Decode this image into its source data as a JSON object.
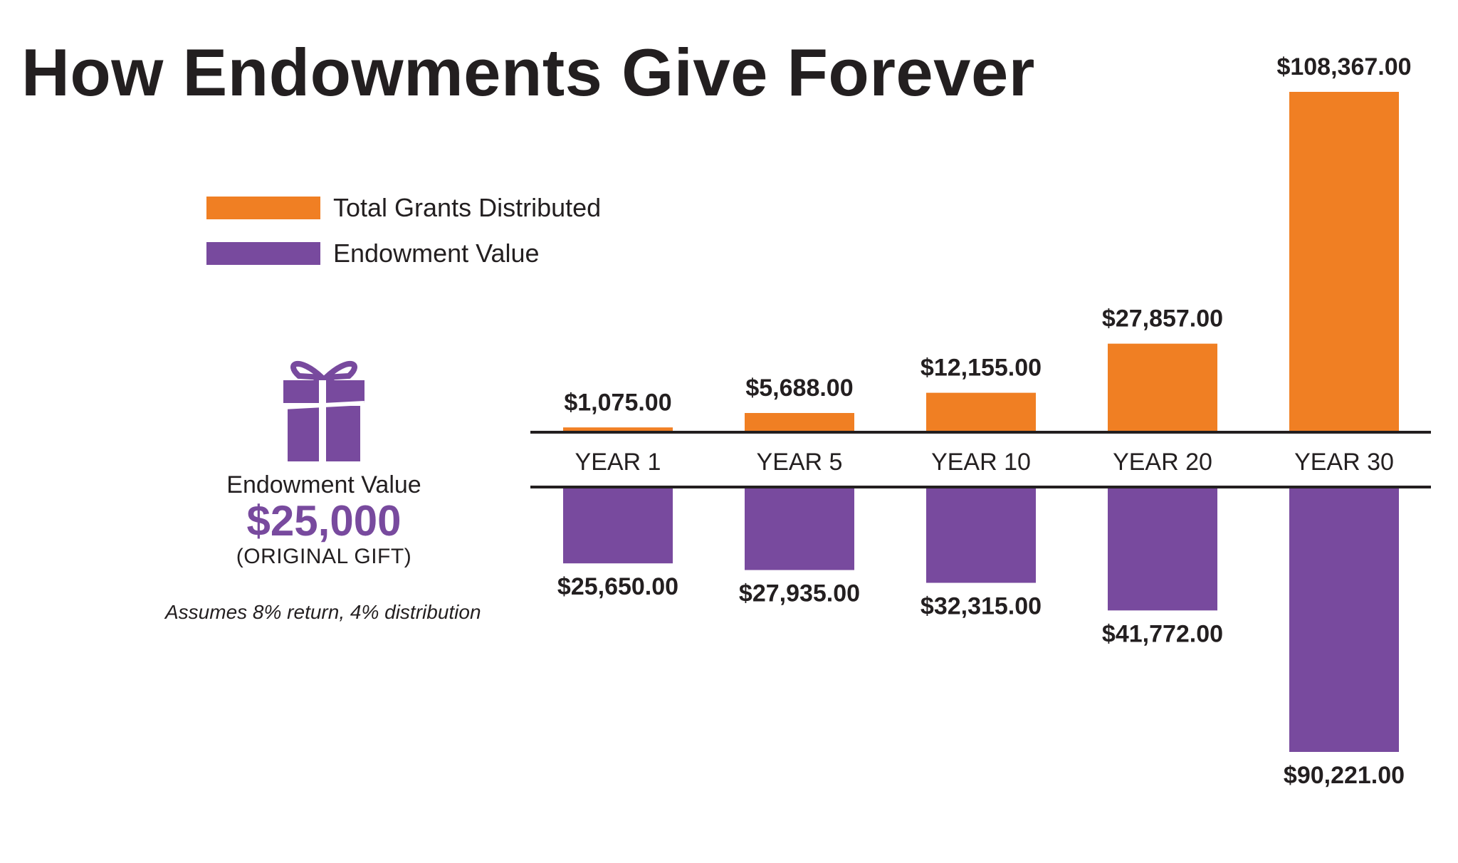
{
  "title": "How Endowments Give Forever",
  "legend": [
    {
      "label": "Total Grants Distributed",
      "color": "#f07f23"
    },
    {
      "label": "Endowment Value",
      "color": "#784a9e"
    }
  ],
  "gift": {
    "icon": "gift-icon",
    "caption": "Endowment Value",
    "amount": "$25,000",
    "note": "(ORIGINAL GIFT)",
    "color": "#784a9e"
  },
  "assumption": "Assumes 8% return, 4% distribution",
  "chart_data": {
    "type": "bar",
    "categories": [
      "YEAR 1",
      "YEAR 5",
      "YEAR 10",
      "YEAR 20",
      "YEAR 30"
    ],
    "series": [
      {
        "name": "Total Grants Distributed",
        "color": "#f07f23",
        "direction": "up",
        "values": [
          1075,
          5688,
          12155,
          27857,
          108367
        ],
        "labels": [
          "$1,075.00",
          "$5,688.00",
          "$12,155.00",
          "$27,857.00",
          "$108,367.00"
        ]
      },
      {
        "name": "Endowment Value",
        "color": "#784a9e",
        "direction": "down",
        "values": [
          25650,
          27935,
          32315,
          41772,
          90221
        ],
        "labels": [
          "$25,650.00",
          "$27,935.00",
          "$32,315.00",
          "$41,772.00",
          "$90,221.00"
        ]
      }
    ],
    "grid": false,
    "legend_position": "top-left"
  }
}
